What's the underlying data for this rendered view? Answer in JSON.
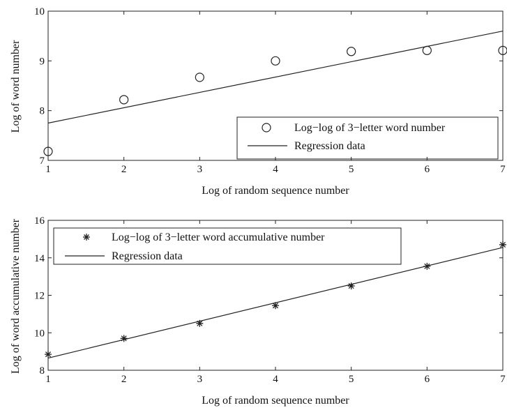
{
  "chart_data": [
    {
      "type": "scatter",
      "xlabel": "Log of random sequence number",
      "ylabel": "Log of word number",
      "xlim": [
        1,
        7
      ],
      "ylim": [
        7,
        10
      ],
      "xticks": [
        1,
        2,
        3,
        4,
        5,
        6,
        7
      ],
      "yticks": [
        7,
        8,
        9,
        10
      ],
      "legend_position": "bottom-right",
      "series": [
        {
          "name": "Log−log of 3−letter word number",
          "marker": "circle",
          "x": [
            1,
            2,
            3,
            4,
            5,
            6,
            7
          ],
          "y": [
            7.18,
            8.22,
            8.67,
            9.0,
            9.19,
            9.21,
            9.21
          ]
        },
        {
          "name": "Regression data",
          "style": "line",
          "x": [
            1,
            7
          ],
          "y": [
            7.75,
            9.6
          ]
        }
      ]
    },
    {
      "type": "scatter",
      "xlabel": "Log of random sequence number",
      "ylabel": "Log of word accumulative number",
      "xlim": [
        1,
        7
      ],
      "ylim": [
        8,
        16
      ],
      "xticks": [
        1,
        2,
        3,
        4,
        5,
        6,
        7
      ],
      "yticks": [
        8,
        10,
        12,
        14,
        16
      ],
      "legend_position": "top-left",
      "series": [
        {
          "name": "Log−log of 3−letter word accumulative number",
          "marker": "star",
          "x": [
            1,
            2,
            3,
            4,
            5,
            6,
            7
          ],
          "y": [
            8.85,
            9.7,
            10.5,
            11.45,
            12.5,
            13.55,
            14.7
          ]
        },
        {
          "name": "Regression data",
          "style": "line",
          "x": [
            1,
            7
          ],
          "y": [
            8.65,
            14.55
          ]
        }
      ]
    }
  ]
}
